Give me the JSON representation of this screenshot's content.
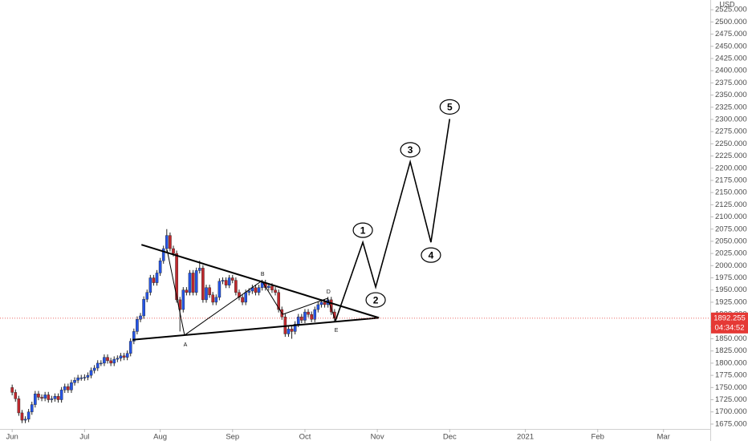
{
  "chart_data": {
    "type": "candlestick",
    "currency": "USD",
    "up_color": "#2454e6",
    "down_color": "#c0282d",
    "xlim": [
      -3.7,
      211
    ],
    "xticks": [
      {
        "value": 0,
        "label": "Jun"
      },
      {
        "value": 22,
        "label": "Jul"
      },
      {
        "value": 45,
        "label": "Aug"
      },
      {
        "value": 67,
        "label": "Sep"
      },
      {
        "value": 89,
        "label": "Oct"
      },
      {
        "value": 111,
        "label": "Nov"
      },
      {
        "value": 133,
        "label": "Dec"
      },
      {
        "value": 156,
        "label": "2021"
      },
      {
        "value": 178,
        "label": "Feb"
      },
      {
        "value": 198,
        "label": "Mar"
      }
    ],
    "ylim": [
      1665,
      2545
    ],
    "yticks": [
      {
        "value": 1675,
        "label": "1675.000"
      },
      {
        "value": 1700,
        "label": "1700.000"
      },
      {
        "value": 1725,
        "label": "1725.000"
      },
      {
        "value": 1750,
        "label": "1750.000"
      },
      {
        "value": 1775,
        "label": "1775.000"
      },
      {
        "value": 1800,
        "label": "1800.000"
      },
      {
        "value": 1825,
        "label": "1825.000"
      },
      {
        "value": 1850,
        "label": "1850.000"
      },
      {
        "value": 1875,
        "label": "1875.000"
      },
      {
        "value": 1900,
        "label": "1900.000"
      },
      {
        "value": 1925,
        "label": "1925.000"
      },
      {
        "value": 1950,
        "label": "1950.000"
      },
      {
        "value": 1975,
        "label": "1975.000"
      },
      {
        "value": 2000,
        "label": "2000.000"
      },
      {
        "value": 2025,
        "label": "2025.000"
      },
      {
        "value": 2050,
        "label": "2050.000"
      },
      {
        "value": 2075,
        "label": "2075.000"
      },
      {
        "value": 2100,
        "label": "2100.000"
      },
      {
        "value": 2125,
        "label": "2125.000"
      },
      {
        "value": 2150,
        "label": "2150.000"
      },
      {
        "value": 2175,
        "label": "2175.000"
      },
      {
        "value": 2200,
        "label": "2200.000"
      },
      {
        "value": 2225,
        "label": "2225.000"
      },
      {
        "value": 2250,
        "label": "2250.000"
      },
      {
        "value": 2275,
        "label": "2275.000"
      },
      {
        "value": 2300,
        "label": "2300.000"
      },
      {
        "value": 2325,
        "label": "2325.000"
      },
      {
        "value": 2350,
        "label": "2350.000"
      },
      {
        "value": 2375,
        "label": "2375.000"
      },
      {
        "value": 2400,
        "label": "2400.000"
      },
      {
        "value": 2425,
        "label": "2425.000"
      },
      {
        "value": 2450,
        "label": "2450.000"
      },
      {
        "value": 2475,
        "label": "2475.000"
      },
      {
        "value": 2500,
        "label": "2500.000"
      },
      {
        "value": 2525,
        "label": "2525.000"
      }
    ],
    "x": [
      0,
      1,
      2,
      3,
      4,
      5,
      6,
      7,
      8,
      9,
      10,
      11,
      12,
      13,
      14,
      15,
      16,
      17,
      18,
      19,
      20,
      21,
      22,
      23,
      24,
      25,
      26,
      27,
      28,
      29,
      30,
      31,
      32,
      33,
      34,
      35,
      36,
      37,
      38,
      39,
      40,
      41,
      42,
      43,
      44,
      45,
      46,
      47,
      48,
      49,
      50,
      51,
      52,
      53,
      54,
      55,
      56,
      57,
      58,
      59,
      60,
      61,
      62,
      63,
      64,
      65,
      66,
      67,
      68,
      69,
      70,
      71,
      72,
      73,
      74,
      75,
      76,
      77,
      78,
      79,
      80,
      81,
      82,
      83,
      84,
      85,
      86,
      87,
      88,
      89,
      90,
      91,
      92,
      93,
      94,
      95,
      96,
      97,
      98
    ],
    "open": [
      1750,
      1740,
      1727,
      1698,
      1683,
      1685,
      1700,
      1715,
      1737,
      1730,
      1728,
      1735,
      1725,
      1727,
      1732,
      1725,
      1745,
      1752,
      1745,
      1760,
      1765,
      1770,
      1770,
      1771,
      1775,
      1785,
      1790,
      1800,
      1800,
      1812,
      1805,
      1800,
      1808,
      1810,
      1815,
      1812,
      1820,
      1845,
      1865,
      1890,
      1897,
      1931,
      1945,
      1975,
      1965,
      1985,
      2010,
      2035,
      2062,
      2035,
      2025,
      1930,
      1910,
      1950,
      1945,
      1985,
      1945,
      1990,
      1995,
      1930,
      1955,
      1940,
      1925,
      1935,
      1968,
      1970,
      1960,
      1975,
      1970,
      1945,
      1935,
      1925,
      1945,
      1948,
      1955,
      1945,
      1955,
      1965,
      1955,
      1958,
      1950,
      1945,
      1910,
      1895,
      1860,
      1870,
      1865,
      1880,
      1895,
      1888,
      1905,
      1900,
      1890,
      1910,
      1920,
      1925,
      1920,
      1930,
      1905
    ],
    "high": [
      1756,
      1746,
      1733,
      1704,
      1691,
      1706,
      1721,
      1743,
      1743,
      1736,
      1741,
      1741,
      1733,
      1738,
      1738,
      1751,
      1758,
      1758,
      1766,
      1771,
      1776,
      1776,
      1777,
      1781,
      1791,
      1796,
      1806,
      1806,
      1818,
      1818,
      1811,
      1814,
      1816,
      1821,
      1821,
      1826,
      1851,
      1871,
      1896,
      1903,
      1937,
      1951,
      1981,
      1981,
      1991,
      2016,
      2041,
      2075,
      2068,
      2041,
      2031,
      1936,
      1956,
      1956,
      1991,
      1991,
      1996,
      2010,
      2001,
      1961,
      1961,
      1946,
      1941,
      1974,
      1976,
      1976,
      1981,
      1981,
      1976,
      1951,
      1941,
      1951,
      1954,
      1961,
      1961,
      1961,
      1971,
      1971,
      1964,
      1964,
      1956,
      1951,
      1916,
      1901,
      1876,
      1876,
      1886,
      1901,
      1901,
      1911,
      1911,
      1906,
      1916,
      1926,
      1931,
      1931,
      1936,
      1936,
      1911
    ],
    "low": [
      1734,
      1721,
      1692,
      1677,
      1677,
      1679,
      1694,
      1709,
      1724,
      1722,
      1722,
      1719,
      1719,
      1721,
      1719,
      1719,
      1739,
      1739,
      1739,
      1754,
      1759,
      1764,
      1764,
      1765,
      1769,
      1779,
      1784,
      1794,
      1794,
      1799,
      1794,
      1794,
      1802,
      1804,
      1806,
      1806,
      1814,
      1839,
      1859,
      1884,
      1891,
      1925,
      1939,
      1959,
      1959,
      1979,
      2004,
      2029,
      2029,
      2019,
      1924,
      1865,
      1904,
      1939,
      1939,
      1939,
      1939,
      1984,
      1924,
      1924,
      1934,
      1919,
      1919,
      1929,
      1962,
      1954,
      1954,
      1964,
      1939,
      1929,
      1919,
      1919,
      1939,
      1942,
      1939,
      1939,
      1949,
      1949,
      1949,
      1944,
      1939,
      1904,
      1889,
      1854,
      1854,
      1850,
      1859,
      1874,
      1882,
      1882,
      1894,
      1884,
      1884,
      1904,
      1914,
      1914,
      1914,
      1899,
      1886
    ],
    "close": [
      1740,
      1727,
      1698,
      1683,
      1685,
      1700,
      1715,
      1737,
      1730,
      1728,
      1735,
      1725,
      1727,
      1732,
      1725,
      1745,
      1752,
      1745,
      1760,
      1765,
      1770,
      1770,
      1771,
      1775,
      1785,
      1790,
      1800,
      1800,
      1812,
      1805,
      1800,
      1808,
      1810,
      1815,
      1812,
      1820,
      1845,
      1865,
      1890,
      1897,
      1931,
      1945,
      1975,
      1965,
      1985,
      2010,
      2035,
      2062,
      2035,
      2025,
      1930,
      1910,
      1950,
      1945,
      1985,
      1945,
      1990,
      1995,
      1930,
      1955,
      1940,
      1925,
      1935,
      1968,
      1970,
      1960,
      1975,
      1970,
      1945,
      1935,
      1925,
      1945,
      1948,
      1955,
      1945,
      1955,
      1965,
      1955,
      1958,
      1950,
      1945,
      1910,
      1895,
      1860,
      1870,
      1865,
      1880,
      1895,
      1888,
      1905,
      1900,
      1890,
      1910,
      1920,
      1925,
      1920,
      1930,
      1905,
      1892
    ],
    "last_price": 1892.255,
    "countdown": "04:34:52",
    "triangle_upper": {
      "x": [
        39.3,
        111.5
      ],
      "y": [
        2043,
        1893
      ]
    },
    "triangle_lower": {
      "x": [
        36.6,
        111.5
      ],
      "y": [
        1848,
        1893
      ]
    },
    "abcde": {
      "x": [
        47.1,
        52.4,
        75.9,
        82.2,
        95.9,
        98.3
      ],
      "y": [
        2032,
        1857.5,
        1969,
        1900,
        1933,
        1887
      ],
      "labels": [
        null,
        "A",
        "B",
        null,
        "D",
        "E"
      ]
    },
    "waves": {
      "x": [
        98.3,
        106.6,
        110.5,
        121,
        127.3,
        133
      ],
      "y": [
        1887,
        2048,
        1956,
        2213,
        2048,
        2301
      ],
      "labels": [
        null,
        "1",
        "2",
        "3",
        "4",
        "5"
      ]
    }
  }
}
